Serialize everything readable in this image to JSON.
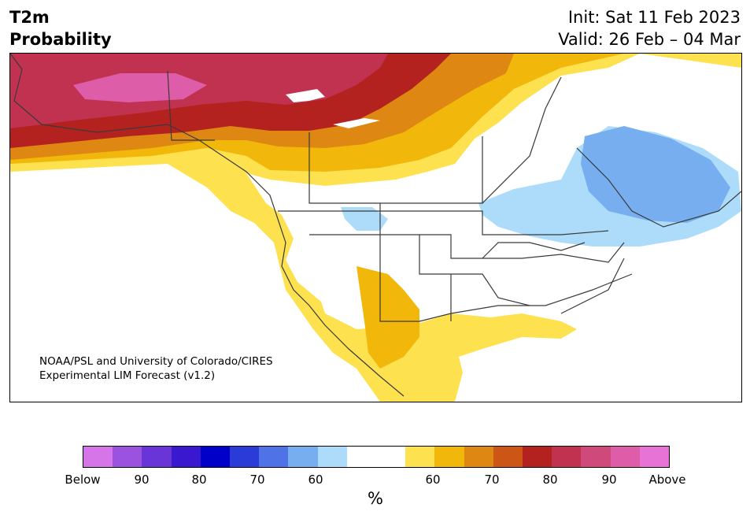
{
  "header": {
    "title_line1": "T2m",
    "title_line2": "Probability",
    "init": "Init: Sat 11 Feb 2023",
    "valid": "Valid: 26 Feb – 04 Mar"
  },
  "map": {
    "credit_line1": "NOAA/PSL and University of Colorado/CIRES",
    "credit_line2": "Experimental LIM Forecast (v1.2)"
  },
  "colorbar": {
    "colors": [
      "#d675e8",
      "#9b52df",
      "#6a35d6",
      "#3a18cf",
      "#0000c8",
      "#2b3bd8",
      "#4f73e6",
      "#77aef0",
      "#acdcfa",
      "#ffffff",
      "#ffffff",
      "#fde14e",
      "#f1b70b",
      "#df8713",
      "#cb5616",
      "#b3221f",
      "#c0324f",
      "#cf4a7b",
      "#dd5da9",
      "#e873d6"
    ],
    "ticks": [
      "Below",
      "90",
      "80",
      "70",
      "60",
      "60",
      "70",
      "80",
      "90",
      "Above"
    ],
    "unit": "%"
  }
}
